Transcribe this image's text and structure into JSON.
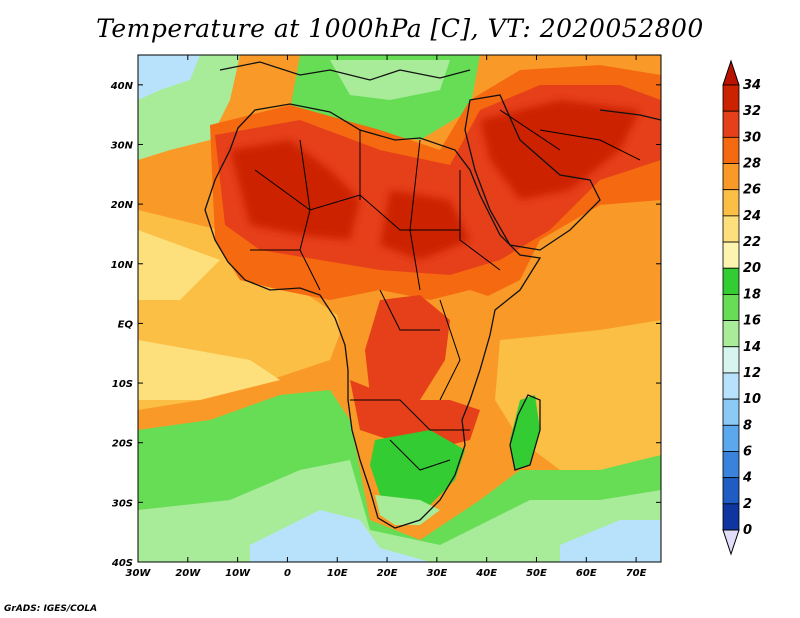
{
  "title": "Temperature at 1000hPa [C], VT: 2020052800",
  "credit": "GrADS: IGES/COLA",
  "map": {
    "lon_range": [
      -30,
      75
    ],
    "lat_range": [
      -40,
      45
    ],
    "lon_ticks": [
      "30W",
      "20W",
      "10W",
      "0",
      "10E",
      "20E",
      "30E",
      "40E",
      "50E",
      "60E",
      "70E"
    ],
    "lat_ticks": [
      "40N",
      "30N",
      "20N",
      "10N",
      "EQ",
      "10S",
      "20S",
      "30S",
      "40S"
    ]
  },
  "colorbar": {
    "labels": [
      "34",
      "32",
      "30",
      "28",
      "26",
      "24",
      "22",
      "20",
      "18",
      "16",
      "14",
      "12",
      "10",
      "8",
      "6",
      "4",
      "2",
      "0"
    ],
    "colors": [
      "#cc2200",
      "#e6401a",
      "#f56a10",
      "#f99a28",
      "#fbbf45",
      "#fde07c",
      "#fdf4b0",
      "#33cc33",
      "#66dd55",
      "#a8ec9a",
      "#d6f5ee",
      "#b8e2fb",
      "#8ccaf6",
      "#5ca8ee",
      "#3a83dc",
      "#1f5cc4",
      "#0f36a0",
      "#0a1c78"
    ],
    "top_arrow_color": "#bb1100",
    "bottom_arrow_color": "#e2defa"
  },
  "fields": {
    "ocean_base": "#f99a28",
    "saharan_hot": "#e6401a",
    "saharan_core": "#cc2200",
    "ocean_warm": "#fbbf45",
    "ocean_mild": "#fde07c",
    "south_cool": "#66dd55",
    "south_cooler": "#a8ec9a",
    "south_cold": "#b8e2fb",
    "north_cool": "#66dd55",
    "land_green": "#33cc33"
  }
}
